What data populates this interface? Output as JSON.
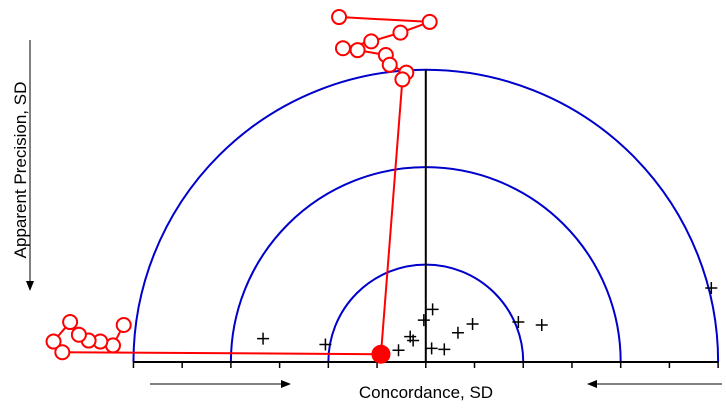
{
  "chart_data": {
    "type": "scatter",
    "x_label": "Concordance, SD",
    "y_label": "Apparent Precision, SD",
    "xlim": [
      -3.9,
      3.05
    ],
    "ylim": [
      0,
      3.6
    ],
    "xticks": [
      -3,
      -2.5,
      -2,
      -1.5,
      -1,
      -0.5,
      0,
      0.5,
      1,
      1.5,
      2,
      2.5,
      3
    ],
    "rings": [
      1,
      2,
      3
    ],
    "ring_color": "#0000cc",
    "series": [
      {
        "color": "#000000",
        "marker": "plus",
        "x": [
          -1.67,
          -1.03,
          -0.28,
          -0.16,
          -0.13,
          -0.02,
          0.07,
          0.06,
          0.19,
          0.33,
          0.48,
          0.95,
          1.19,
          2.93
        ],
        "y": [
          0.24,
          0.18,
          0.12,
          0.26,
          0.22,
          0.43,
          0.54,
          0.14,
          0.13,
          0.3,
          0.39,
          0.41,
          0.38,
          0.76
        ]
      },
      {
        "color": "#ff0000",
        "marker": "filled",
        "x": [
          -0.46
        ],
        "y": [
          0.08
        ]
      },
      {
        "color": "#ff0000",
        "marker": "open-trail",
        "x": [
          -0.89,
          0.04,
          -0.26,
          -0.56,
          -0.85,
          -0.7,
          -0.41,
          -0.37,
          -0.2,
          -0.24
        ],
        "y": [
          3.54,
          3.49,
          3.38,
          3.29,
          3.22,
          3.2,
          3.15,
          3.05,
          2.97,
          2.9
        ]
      },
      {
        "color": "#ff0000",
        "marker": "open-trail",
        "x": [
          -3.1,
          -3.21,
          -3.34,
          -3.46,
          -3.56,
          -3.65,
          -3.82,
          -3.73
        ],
        "y": [
          0.38,
          0.17,
          0.21,
          0.22,
          0.28,
          0.41,
          0.21,
          0.1
        ]
      }
    ]
  }
}
